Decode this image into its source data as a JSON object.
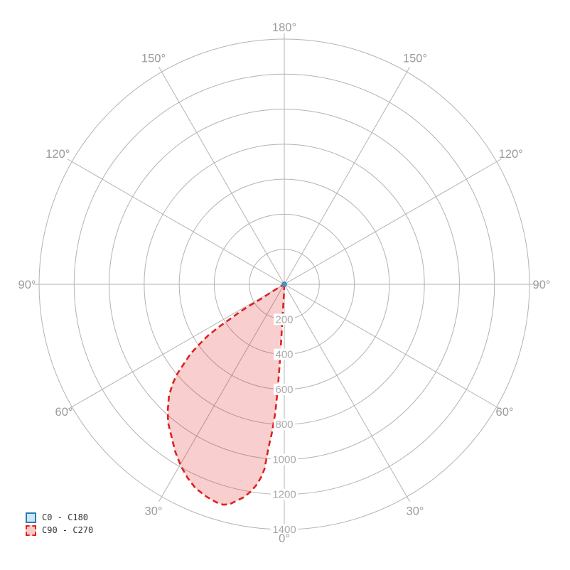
{
  "chart_data": {
    "type": "polar",
    "kind": "luminous-intensity-distribution",
    "radial_axis": {
      "max": 1400,
      "ticks": [
        200,
        400,
        600,
        800,
        1000,
        1200,
        1400
      ],
      "tick_labels": [
        "200",
        "400",
        "600",
        "800",
        "1000",
        "1200",
        "1400"
      ]
    },
    "angle_labels": [
      {
        "gamma": 180,
        "label": "180°"
      },
      {
        "gamma": 150,
        "label": "150°"
      },
      {
        "gamma": 120,
        "label": "120°"
      },
      {
        "gamma": 90,
        "label": "90°"
      },
      {
        "gamma": 60,
        "label": "60°"
      },
      {
        "gamma": 30,
        "label": "30°"
      },
      {
        "gamma": 0,
        "label": "0°"
      }
    ],
    "colors": {
      "background": "#ffffff",
      "grid": "#b3b3b3",
      "angle_label": "#9b9b9b",
      "radial_label": "#a9a9a9",
      "c0_stroke": "#2a7cb0",
      "c0_fill": "#cfe6f4",
      "c90_stroke": "#e02020",
      "c90_fill": "#f9caca"
    },
    "series": [
      {
        "name": "C0 - C180",
        "style": "solid",
        "stroke": "#2a7cb0",
        "fill": "#cfe6f4",
        "render": "center-dot",
        "points_gamma_value": [
          [
            0,
            0
          ]
        ]
      },
      {
        "name": "C90 - C270",
        "style": "dashed",
        "stroke": "#e02020",
        "fill": "#f9caca",
        "fill_opacity": 0.22,
        "render": "lobe",
        "points_gamma_value": [
          [
            2.0,
            60
          ],
          [
            3.0,
            160
          ],
          [
            3.2,
            330
          ],
          [
            3.3,
            470
          ],
          [
            3.6,
            600
          ],
          [
            4.0,
            730
          ],
          [
            4.7,
            845
          ],
          [
            5.5,
            935
          ],
          [
            6.1,
            1060
          ],
          [
            6.9,
            1112
          ],
          [
            8.0,
            1160
          ],
          [
            9.3,
            1202
          ],
          [
            10.9,
            1240
          ],
          [
            12.4,
            1265
          ],
          [
            14.0,
            1295
          ],
          [
            15.5,
            1306
          ],
          [
            17.2,
            1304
          ],
          [
            20.0,
            1292
          ],
          [
            23.5,
            1270
          ],
          [
            26.5,
            1236
          ],
          [
            29.4,
            1197
          ],
          [
            33.0,
            1142
          ],
          [
            36.1,
            1089
          ],
          [
            40.0,
            1032
          ],
          [
            42.8,
            979
          ],
          [
            46.0,
            915
          ],
          [
            48.3,
            854
          ],
          [
            50.0,
            800
          ],
          [
            51.5,
            737
          ],
          [
            53.4,
            667
          ],
          [
            54.7,
            597
          ],
          [
            56.1,
            523
          ],
          [
            56.9,
            446
          ],
          [
            57.3,
            376
          ],
          [
            58.0,
            310
          ],
          [
            58.4,
            248
          ],
          [
            57.9,
            168
          ],
          [
            58.8,
            100
          ],
          [
            59.5,
            40
          ],
          [
            60.0,
            0
          ]
        ]
      }
    ]
  },
  "legend": {
    "items": [
      {
        "label": "C0 - C180"
      },
      {
        "label": "C90 - C270"
      }
    ]
  }
}
